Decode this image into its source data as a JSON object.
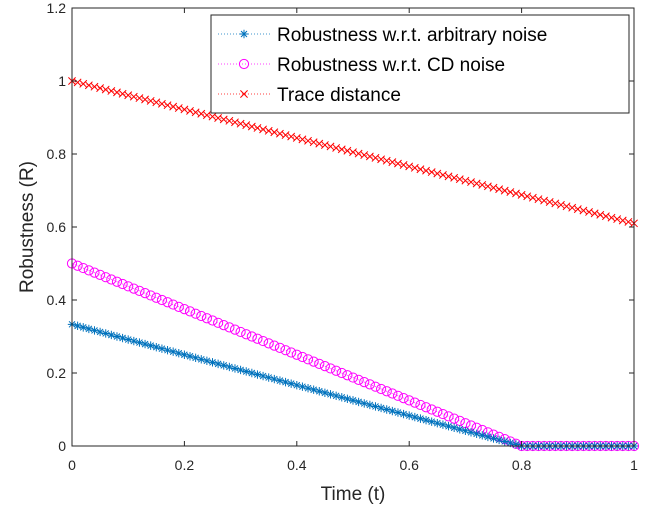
{
  "chart_data": {
    "type": "line",
    "xlabel": "Time (t)",
    "ylabel": "Robustness (R)",
    "xlim": [
      0,
      1
    ],
    "ylim": [
      0,
      1.2
    ],
    "x_ticks": [
      "0",
      "0.2",
      "0.4",
      "0.6",
      "0.8",
      "1"
    ],
    "y_ticks": [
      "0",
      "0.2",
      "0.4",
      "0.6",
      "0.8",
      "1",
      "1.2"
    ],
    "grid": false,
    "legend_position": "top-right",
    "x_sampling": {
      "start": 0,
      "end": 1,
      "count": 101
    },
    "series": [
      {
        "name": "Robustness w.r.t. arbitrary noise",
        "marker": "asterisk",
        "line_style": "dotted",
        "color": "#0072BD",
        "function": "max(0, (1 - t/0.8)/3)",
        "key_points": [
          [
            0,
            0.333
          ],
          [
            0.2,
            0.25
          ],
          [
            0.4,
            0.167
          ],
          [
            0.6,
            0.083
          ],
          [
            0.8,
            0
          ],
          [
            1,
            0
          ]
        ]
      },
      {
        "name": "Robustness w.r.t. CD noise",
        "marker": "circle",
        "line_style": "dotted",
        "color": "#FF00FF",
        "function": "max(0, (1 - t/0.8)/2)",
        "key_points": [
          [
            0,
            0.5
          ],
          [
            0.2,
            0.375
          ],
          [
            0.4,
            0.25
          ],
          [
            0.6,
            0.125
          ],
          [
            0.8,
            0
          ],
          [
            1,
            0
          ]
        ]
      },
      {
        "name": "Trace distance",
        "marker": "x",
        "line_style": "dotted",
        "color": "#FF0000",
        "function": "1 - 0.39*t",
        "key_points": [
          [
            0,
            1.0
          ],
          [
            0.2,
            0.922
          ],
          [
            0.4,
            0.844
          ],
          [
            0.6,
            0.766
          ],
          [
            0.8,
            0.688
          ],
          [
            1,
            0.61
          ]
        ]
      }
    ]
  }
}
